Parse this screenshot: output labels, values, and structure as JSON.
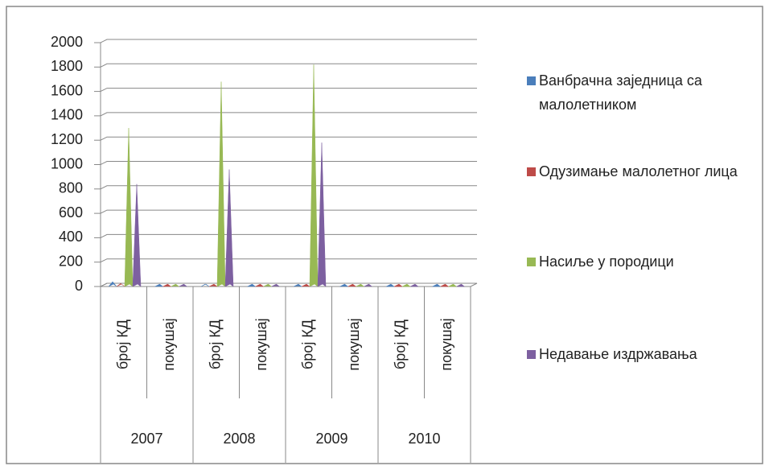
{
  "chart_data": {
    "type": "pyramid",
    "categories": [
      "број КД",
      "покушај",
      "број КД",
      "покушај",
      "број КД",
      "покушај",
      "број КД",
      "покушај"
    ],
    "groups": [
      "2007",
      "2008",
      "2009",
      "2010"
    ],
    "series": [
      {
        "name": "Ванбрачна заједница са малолетником",
        "color": "#4a7ebb",
        "values": [
          40,
          2,
          20,
          2,
          5,
          2,
          0,
          0
        ]
      },
      {
        "name": "Одузимање малолетног лица",
        "color": "#be4b48",
        "values": [
          25,
          2,
          5,
          2,
          3,
          2,
          0,
          0
        ]
      },
      {
        "name": "Насиље у породици",
        "color": "#98b954",
        "values": [
          1300,
          5,
          1680,
          5,
          1820,
          5,
          0,
          0
        ]
      },
      {
        "name": "Недавање издржавања",
        "color": "#7d60a0",
        "values": [
          840,
          5,
          960,
          5,
          1180,
          5,
          0,
          0
        ]
      }
    ],
    "ylim": [
      0,
      2000
    ],
    "yticks": [
      0,
      200,
      400,
      600,
      800,
      1000,
      1200,
      1400,
      1600,
      1800,
      2000
    ],
    "grid": true,
    "legend": "right"
  }
}
